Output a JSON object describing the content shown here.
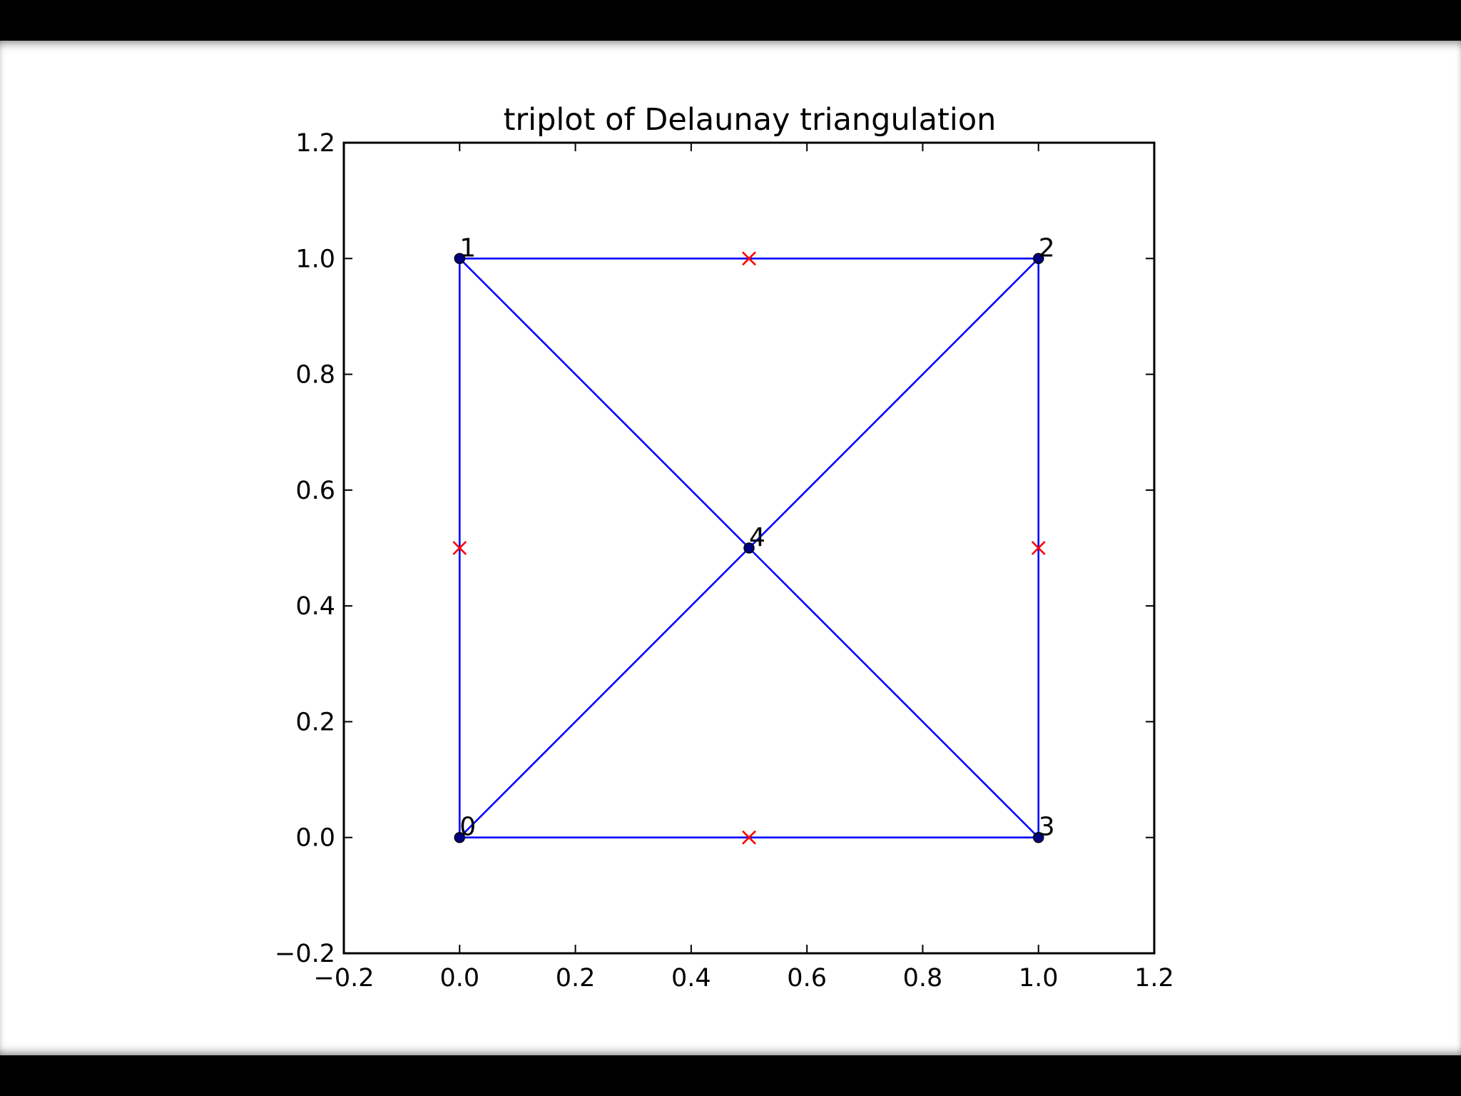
{
  "chart_data": {
    "type": "scatter",
    "title": "triplot of Delaunay triangulation",
    "xlabel": "",
    "ylabel": "",
    "xlim": [
      -0.2,
      1.2
    ],
    "ylim": [
      -0.2,
      1.2
    ],
    "grid": false,
    "x_ticks": [
      -0.2,
      0.0,
      0.2,
      0.4,
      0.6,
      0.8,
      1.0,
      1.2
    ],
    "y_ticks": [
      -0.2,
      0.0,
      0.2,
      0.4,
      0.6,
      0.8,
      1.0,
      1.2
    ],
    "x_tick_labels": [
      "−0.2",
      "0.0",
      "0.2",
      "0.4",
      "0.6",
      "0.8",
      "1.0",
      "1.2"
    ],
    "y_tick_labels": [
      "−0.2",
      "0.0",
      "0.2",
      "0.4",
      "0.6",
      "0.8",
      "1.0",
      "1.2"
    ],
    "points": [
      {
        "label": "0",
        "x": 0.0,
        "y": 0.0
      },
      {
        "label": "1",
        "x": 0.0,
        "y": 1.0
      },
      {
        "label": "2",
        "x": 1.0,
        "y": 1.0
      },
      {
        "label": "3",
        "x": 1.0,
        "y": 0.0
      },
      {
        "label": "4",
        "x": 0.5,
        "y": 0.5
      }
    ],
    "edges": [
      [
        0,
        1
      ],
      [
        1,
        2
      ],
      [
        2,
        3
      ],
      [
        3,
        0
      ],
      [
        1,
        4
      ],
      [
        4,
        3
      ],
      [
        0,
        4
      ],
      [
        4,
        2
      ]
    ],
    "edge_midpoint_markers": [
      {
        "x": 0.5,
        "y": 1.0
      },
      {
        "x": 0.0,
        "y": 0.5
      },
      {
        "x": 1.0,
        "y": 0.5
      },
      {
        "x": 0.5,
        "y": 0.0
      }
    ],
    "colors": {
      "edges": "#0000ff",
      "points": "#000080",
      "markers": "#ff0000",
      "axes": "#000000",
      "background": "#ffffff",
      "frame": "#000000"
    }
  }
}
